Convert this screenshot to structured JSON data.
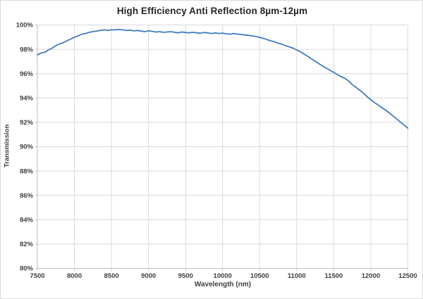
{
  "chart_data": {
    "type": "line",
    "title": "High Efficiency Anti Reflection 8µm-12µm",
    "xlabel": "Wavelength (nm)",
    "ylabel": "Transmission",
    "xlim": [
      7500,
      12500
    ],
    "ylim": [
      80,
      100
    ],
    "x_ticks": [
      7500,
      8000,
      8500,
      9000,
      9500,
      10000,
      10500,
      11000,
      11500,
      12000,
      12500
    ],
    "y_ticks": [
      80,
      82,
      84,
      86,
      88,
      90,
      92,
      94,
      96,
      98,
      100
    ],
    "y_tick_suffix": "%",
    "grid": true,
    "legend_visible": false,
    "series": [
      {
        "name": "Transmission",
        "color": "#3f7cbf",
        "x": [
          7500,
          7550,
          7600,
          7650,
          7700,
          7750,
          7800,
          7850,
          7900,
          7950,
          8000,
          8050,
          8100,
          8150,
          8200,
          8250,
          8300,
          8350,
          8400,
          8450,
          8500,
          8550,
          8600,
          8650,
          8700,
          8750,
          8800,
          8850,
          8900,
          8950,
          9000,
          9050,
          9100,
          9150,
          9200,
          9250,
          9300,
          9350,
          9400,
          9450,
          9500,
          9550,
          9600,
          9650,
          9700,
          9750,
          9800,
          9850,
          9900,
          9950,
          10000,
          10050,
          10100,
          10150,
          10200,
          10250,
          10300,
          10350,
          10400,
          10450,
          10500,
          10550,
          10600,
          10650,
          10700,
          10750,
          10800,
          10850,
          10900,
          10950,
          11000,
          11050,
          11100,
          11150,
          11200,
          11250,
          11300,
          11350,
          11400,
          11450,
          11500,
          11550,
          11600,
          11650,
          11700,
          11750,
          11800,
          11850,
          11900,
          11950,
          12000,
          12050,
          12100,
          12150,
          12200,
          12250,
          12300,
          12350,
          12400,
          12450,
          12500
        ],
        "y": [
          97.55,
          97.7,
          97.75,
          97.95,
          98.1,
          98.3,
          98.45,
          98.55,
          98.7,
          98.85,
          99.0,
          99.1,
          99.25,
          99.3,
          99.4,
          99.45,
          99.5,
          99.55,
          99.6,
          99.55,
          99.6,
          99.6,
          99.63,
          99.6,
          99.55,
          99.58,
          99.52,
          99.55,
          99.5,
          99.45,
          99.52,
          99.48,
          99.42,
          99.45,
          99.4,
          99.42,
          99.45,
          99.4,
          99.35,
          99.42,
          99.38,
          99.35,
          99.4,
          99.35,
          99.33,
          99.38,
          99.35,
          99.3,
          99.35,
          99.3,
          99.33,
          99.28,
          99.24,
          99.3,
          99.25,
          99.22,
          99.18,
          99.15,
          99.1,
          99.05,
          98.98,
          98.9,
          98.8,
          98.7,
          98.62,
          98.5,
          98.42,
          98.3,
          98.2,
          98.1,
          97.95,
          97.8,
          97.6,
          97.42,
          97.22,
          97.02,
          96.82,
          96.62,
          96.45,
          96.28,
          96.1,
          95.92,
          95.75,
          95.62,
          95.4,
          95.1,
          94.88,
          94.65,
          94.4,
          94.12,
          93.85,
          93.62,
          93.42,
          93.2,
          93.0,
          92.78,
          92.52,
          92.28,
          92.02,
          91.78,
          91.52
        ]
      }
    ],
    "colors": {
      "line": "#3f7cbf",
      "gridline": "#d9d9d9",
      "axis_line": "#bfbfbf",
      "tick_text": "#404040",
      "title_text": "#262626",
      "background": "#ffffff"
    }
  }
}
